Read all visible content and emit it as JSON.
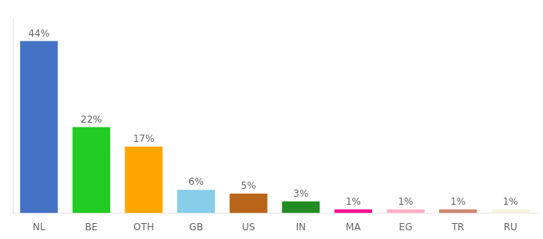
{
  "chart_data": {
    "type": "bar",
    "categories": [
      "NL",
      "BE",
      "OTH",
      "GB",
      "US",
      "IN",
      "MA",
      "EG",
      "TR",
      "RU"
    ],
    "values": [
      44,
      22,
      17,
      6,
      5,
      3,
      1,
      1,
      1,
      1
    ],
    "value_labels": [
      "44%",
      "22%",
      "17%",
      "6%",
      "5%",
      "3%",
      "1%",
      "1%",
      "1%",
      "1%"
    ],
    "colors": [
      "#4472C4",
      "#22CC22",
      "#FFA500",
      "#87CEEB",
      "#B8651A",
      "#228B22",
      "#FF1493",
      "#FFB0C8",
      "#CC8870",
      "#F5F5DC"
    ],
    "ylim": [
      0,
      50
    ],
    "grid": false,
    "data_labels": true,
    "tick_labels": "x"
  }
}
